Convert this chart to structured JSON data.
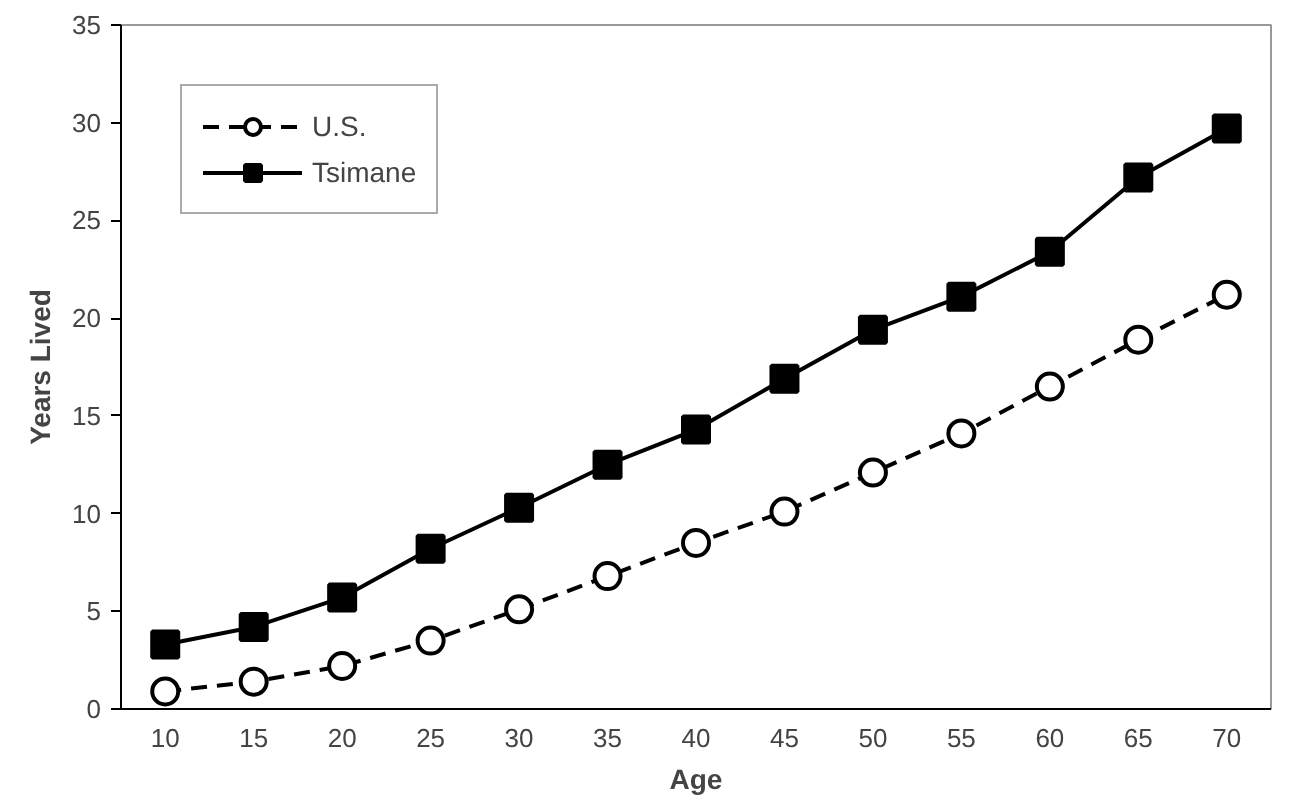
{
  "chart_data": {
    "type": "line",
    "xlabel": "Age",
    "ylabel": "Years Lived",
    "categories": [
      "10",
      "15",
      "20",
      "25",
      "30",
      "35",
      "40",
      "45",
      "50",
      "55",
      "60",
      "65",
      "70"
    ],
    "ylim": [
      0,
      35
    ],
    "yticks": [
      0,
      5,
      10,
      15,
      20,
      25,
      30,
      35
    ],
    "grid": false,
    "legend": "top left",
    "series": [
      {
        "name": "U.S.",
        "color": "#000000",
        "marker": "circle",
        "line_style": "dashed",
        "values": [
          0.9,
          1.4,
          2.2,
          3.5,
          5.1,
          6.8,
          8.5,
          10.1,
          12.1,
          14.1,
          16.5,
          18.9,
          21.2
        ]
      },
      {
        "name": "Tsimane",
        "color": "#000000",
        "marker": "square",
        "line_style": "solid",
        "values": [
          3.3,
          4.2,
          5.7,
          8.2,
          10.3,
          12.5,
          14.3,
          16.9,
          19.4,
          21.1,
          23.4,
          27.2,
          29.7
        ]
      }
    ]
  }
}
